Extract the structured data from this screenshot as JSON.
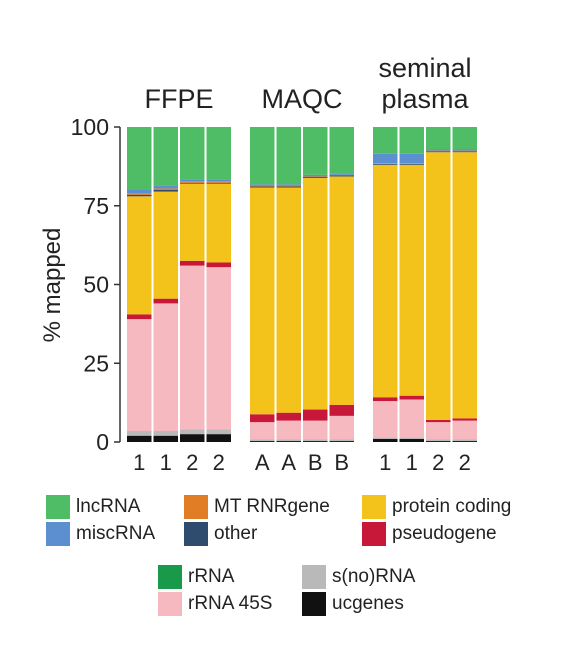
{
  "chart_data": {
    "type": "bar",
    "ylabel": "% mapped",
    "ylim": [
      0,
      100
    ],
    "yticks": [
      0,
      25,
      50,
      75,
      100
    ],
    "groups": [
      {
        "name": "FFPE",
        "categories": [
          "1",
          "1",
          "2",
          "2"
        ],
        "bars": [
          {
            "ucgenes": 2,
            "s(no)RNA": 1.5,
            "rRNA 45S": 35.5,
            "rRNA": 0,
            "pseudogene": 1.5,
            "protein coding": 37.5,
            "other": 0.5,
            "MT RNRgene": 0.5,
            "miscRNA": 1,
            "lncRNA": 20
          },
          {
            "ucgenes": 2,
            "s(no)RNA": 1.5,
            "rRNA 45S": 40.5,
            "rRNA": 0,
            "pseudogene": 1.5,
            "protein coding": 34,
            "other": 0.5,
            "MT RNRgene": 0.5,
            "miscRNA": 1,
            "lncRNA": 18.5
          },
          {
            "ucgenes": 2.5,
            "s(no)RNA": 1.5,
            "rRNA 45S": 52,
            "rRNA": 0,
            "pseudogene": 1.5,
            "protein coding": 24.5,
            "other": 0.3,
            "MT RNRgene": 0.5,
            "miscRNA": 0.5,
            "lncRNA": 16.7
          },
          {
            "ucgenes": 2.5,
            "s(no)RNA": 1.5,
            "rRNA 45S": 51.5,
            "rRNA": 0,
            "pseudogene": 1.5,
            "protein coding": 25,
            "other": 0.3,
            "MT RNRgene": 0.5,
            "miscRNA": 0.5,
            "lncRNA": 16.7
          }
        ]
      },
      {
        "name": "MAQC",
        "categories": [
          "A",
          "A",
          "B",
          "B"
        ],
        "bars": [
          {
            "ucgenes": 0.3,
            "s(no)RNA": 0.5,
            "rRNA 45S": 5.5,
            "rRNA": 0,
            "pseudogene": 2.5,
            "protein coding": 72,
            "other": 0.3,
            "MT RNRgene": 0.2,
            "miscRNA": 0.5,
            "lncRNA": 18.2
          },
          {
            "ucgenes": 0.3,
            "s(no)RNA": 0.5,
            "rRNA 45S": 6,
            "rRNA": 0,
            "pseudogene": 2.5,
            "protein coding": 71.5,
            "other": 0.3,
            "MT RNRgene": 0.2,
            "miscRNA": 0.5,
            "lncRNA": 18.2
          },
          {
            "ucgenes": 0.3,
            "s(no)RNA": 0.5,
            "rRNA 45S": 6,
            "rRNA": 0,
            "pseudogene": 3.5,
            "protein coding": 73.5,
            "other": 0.3,
            "MT RNRgene": 0.2,
            "miscRNA": 0.5,
            "lncRNA": 15.2
          },
          {
            "ucgenes": 0.3,
            "s(no)RNA": 0.5,
            "rRNA 45S": 7.5,
            "rRNA": 0,
            "pseudogene": 3.5,
            "protein coding": 72.5,
            "other": 0.3,
            "MT RNRgene": 0.2,
            "miscRNA": 0.5,
            "lncRNA": 14.7
          }
        ]
      },
      {
        "name": "seminal plasma",
        "categories": [
          "1",
          "1",
          "2",
          "2"
        ],
        "bars": [
          {
            "ucgenes": 1,
            "s(no)RNA": 0.5,
            "rRNA 45S": 11.5,
            "rRNA": 0,
            "pseudogene": 1.2,
            "protein coding": 73.8,
            "other": 0.3,
            "MT RNRgene": 0.2,
            "miscRNA": 3,
            "lncRNA": 8.5
          },
          {
            "ucgenes": 1,
            "s(no)RNA": 0.5,
            "rRNA 45S": 12,
            "rRNA": 0,
            "pseudogene": 1.2,
            "protein coding": 73.3,
            "other": 0.3,
            "MT RNRgene": 0.2,
            "miscRNA": 3,
            "lncRNA": 8.5
          },
          {
            "ucgenes": 0.3,
            "s(no)RNA": 0.5,
            "rRNA 45S": 5.5,
            "rRNA": 0,
            "pseudogene": 0.7,
            "protein coding": 85,
            "other": 0.3,
            "MT RNRgene": 0.2,
            "miscRNA": 0.5,
            "lncRNA": 7
          },
          {
            "ucgenes": 0.3,
            "s(no)RNA": 0.5,
            "rRNA 45S": 6,
            "rRNA": 0,
            "pseudogene": 0.7,
            "protein coding": 84.5,
            "other": 0.3,
            "MT RNRgene": 0.2,
            "miscRNA": 0.5,
            "lncRNA": 7
          }
        ]
      }
    ],
    "stack_order": [
      "ucgenes",
      "s(no)RNA",
      "rRNA 45S",
      "rRNA",
      "pseudogene",
      "protein coding",
      "other",
      "MT RNRgene",
      "miscRNA",
      "lncRNA"
    ],
    "series_colors": {
      "lncRNA": "#4fbd66",
      "miscRNA": "#5b8fcf",
      "MT RNRgene": "#e07d25",
      "other": "#2f4c6e",
      "protein coding": "#f3c21b",
      "pseudogene": "#c8183a",
      "rRNA": "#199a4a",
      "rRNA 45S": "#f5b9bf",
      "s(no)RNA": "#b9b9b9",
      "ucgenes": "#111111"
    },
    "legend": [
      [
        "lncRNA",
        "MT RNRgene",
        "protein coding"
      ],
      [
        "miscRNA",
        "other",
        "pseudogene"
      ],
      [
        "rRNA",
        "s(no)RNA"
      ],
      [
        "rRNA 45S",
        "ucgenes"
      ]
    ],
    "legend_labels": {
      "lncRNA": "lncRNA",
      "MT RNRgene": "MT RNRgene",
      "protein coding": "protein coding",
      "miscRNA": "miscRNA",
      "other": "other",
      "pseudogene": "pseudogene",
      "rRNA": "rRNA",
      "s(no)RNA": "s(no)RNA",
      "rRNA 45S": "rRNA 45S",
      "ucgenes": "ucgenes"
    }
  }
}
